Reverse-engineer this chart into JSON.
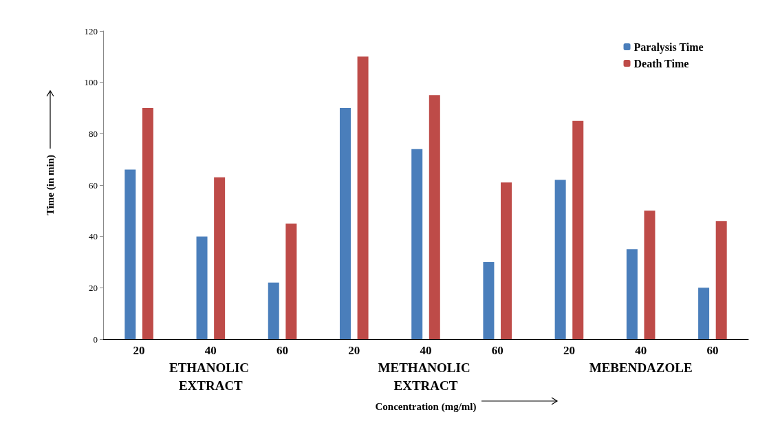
{
  "chart_data": {
    "type": "bar",
    "xlabel": "Concentration (mg/ml)",
    "ylabel": "Time (in min)",
    "categories": [
      "20",
      "40",
      "60",
      "20",
      "40",
      "60",
      "20",
      "40",
      "60"
    ],
    "series": [
      {
        "name": "Paralysis Time",
        "color": "#4a7ebb",
        "values": [
          66,
          40,
          22,
          90,
          74,
          30,
          62,
          35,
          20
        ]
      },
      {
        "name": "Death Time",
        "color": "#be4b48",
        "values": [
          90,
          63,
          45,
          110,
          95,
          61,
          85,
          50,
          46
        ]
      }
    ],
    "annotations": [
      "ETHANOLIC EXTRACT",
      "METHANOLIC EXTRACT",
      "MEBENDAZOLE"
    ],
    "ylim": [
      0,
      120
    ],
    "yticks": [
      0,
      20,
      40,
      60,
      80,
      100,
      120
    ],
    "grid": false,
    "legend": "top right"
  }
}
